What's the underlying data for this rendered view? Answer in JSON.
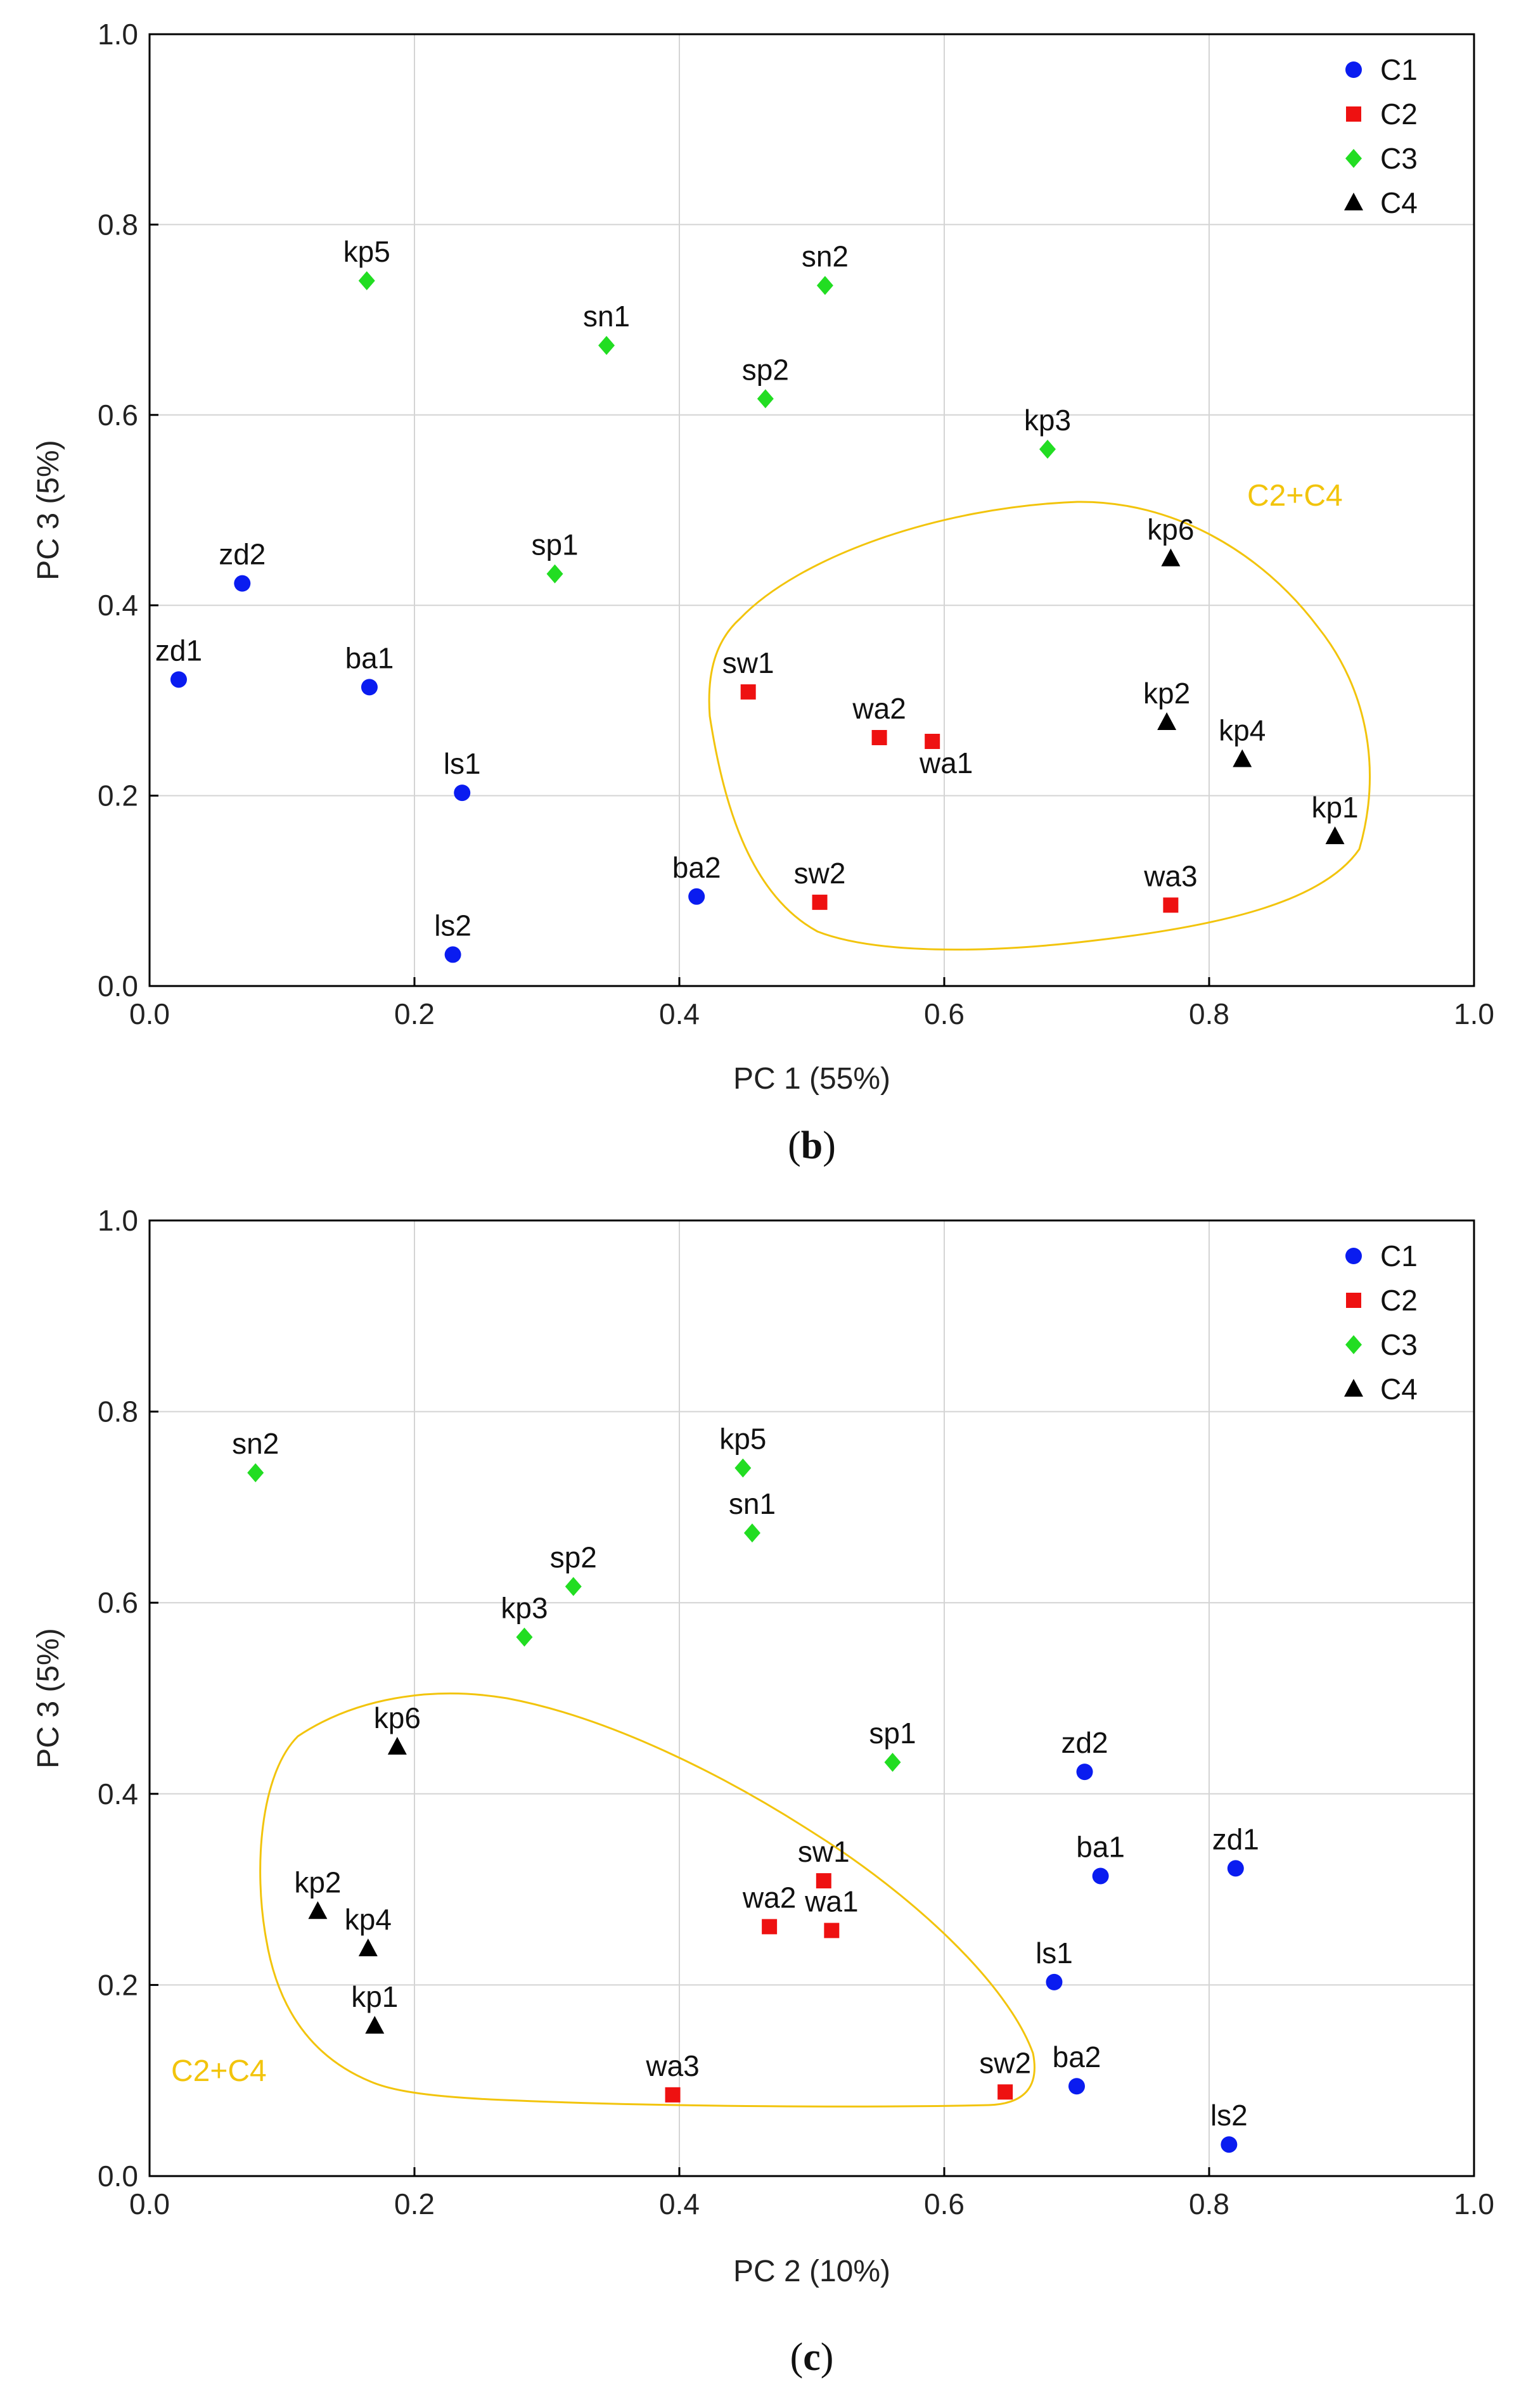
{
  "chart_data": [
    {
      "type": "scatter",
      "panel": "b",
      "xlabel": "PC 1 (55%)",
      "ylabel": "PC 3 (5%)",
      "xlim": [
        0,
        1
      ],
      "ylim": [
        0,
        1
      ],
      "xticks": [
        "0.0",
        "0.2",
        "0.4",
        "0.6",
        "0.8",
        "1.0"
      ],
      "yticks": [
        "0.0",
        "0.2",
        "0.4",
        "0.6",
        "0.8",
        "1.0"
      ],
      "grid": true,
      "legend_position": "top-right",
      "group_label": "C2+C4",
      "series": [
        {
          "name": "C1",
          "marker": "circle",
          "color": "#0a1cf0",
          "points": [
            {
              "label": "zd2",
              "x": 0.07,
              "y": 0.423
            },
            {
              "label": "zd1",
              "x": 0.022,
              "y": 0.322
            },
            {
              "label": "ba1",
              "x": 0.166,
              "y": 0.314
            },
            {
              "label": "ls1",
              "x": 0.236,
              "y": 0.203
            },
            {
              "label": "ls2",
              "x": 0.229,
              "y": 0.033
            },
            {
              "label": "ba2",
              "x": 0.413,
              "y": 0.094
            }
          ]
        },
        {
          "name": "C2",
          "marker": "square",
          "color": "#ee1111",
          "points": [
            {
              "label": "sw1",
              "x": 0.452,
              "y": 0.309
            },
            {
              "label": "wa2",
              "x": 0.551,
              "y": 0.261
            },
            {
              "label": "wa1",
              "x": 0.591,
              "y": 0.257
            },
            {
              "label": "sw2",
              "x": 0.506,
              "y": 0.088
            },
            {
              "label": "wa3",
              "x": 0.771,
              "y": 0.085
            }
          ]
        },
        {
          "name": "C3",
          "marker": "diamond",
          "color": "#22dd22",
          "points": [
            {
              "label": "kp5",
              "x": 0.164,
              "y": 0.741
            },
            {
              "label": "sn2",
              "x": 0.51,
              "y": 0.736
            },
            {
              "label": "sn1",
              "x": 0.345,
              "y": 0.673
            },
            {
              "label": "sp2",
              "x": 0.465,
              "y": 0.617
            },
            {
              "label": "kp3",
              "x": 0.678,
              "y": 0.564
            },
            {
              "label": "sp1",
              "x": 0.306,
              "y": 0.433
            }
          ]
        },
        {
          "name": "C4",
          "marker": "triangle",
          "color": "#000000",
          "points": [
            {
              "label": "kp6",
              "x": 0.771,
              "y": 0.449
            },
            {
              "label": "kp2",
              "x": 0.768,
              "y": 0.277
            },
            {
              "label": "kp4",
              "x": 0.825,
              "y": 0.238
            },
            {
              "label": "kp1",
              "x": 0.895,
              "y": 0.157
            }
          ]
        }
      ]
    },
    {
      "type": "scatter",
      "panel": "c",
      "xlabel": "PC 2 (10%)",
      "ylabel": "PC 3 (5%)",
      "xlim": [
        0,
        1
      ],
      "ylim": [
        0,
        1
      ],
      "xticks": [
        "0.0",
        "0.2",
        "0.4",
        "0.6",
        "0.8",
        "1.0"
      ],
      "yticks": [
        "0.0",
        "0.2",
        "0.4",
        "0.6",
        "0.8",
        "1.0"
      ],
      "grid": true,
      "legend_position": "top-right",
      "group_label": "C2+C4",
      "series": [
        {
          "name": "C1",
          "marker": "circle",
          "color": "#0a1cf0",
          "points": [
            {
              "label": "zd2",
              "x": 0.706,
              "y": 0.423
            },
            {
              "label": "ba1",
              "x": 0.718,
              "y": 0.314
            },
            {
              "label": "zd1",
              "x": 0.82,
              "y": 0.322
            },
            {
              "label": "ls1",
              "x": 0.683,
              "y": 0.203
            },
            {
              "label": "ba2",
              "x": 0.7,
              "y": 0.094
            },
            {
              "label": "ls2",
              "x": 0.815,
              "y": 0.033
            }
          ]
        },
        {
          "name": "C2",
          "marker": "square",
          "color": "#ee1111",
          "points": [
            {
              "label": "sw1",
              "x": 0.509,
              "y": 0.309
            },
            {
              "label": "wa2",
              "x": 0.468,
              "y": 0.261
            },
            {
              "label": "wa1",
              "x": 0.515,
              "y": 0.257
            },
            {
              "label": "wa3",
              "x": 0.395,
              "y": 0.085
            },
            {
              "label": "sw2",
              "x": 0.646,
              "y": 0.088
            }
          ]
        },
        {
          "name": "C3",
          "marker": "diamond",
          "color": "#22dd22",
          "points": [
            {
              "label": "sn2",
              "x": 0.08,
              "y": 0.736
            },
            {
              "label": "kp5",
              "x": 0.448,
              "y": 0.741
            },
            {
              "label": "sn1",
              "x": 0.455,
              "y": 0.673
            },
            {
              "label": "sp2",
              "x": 0.32,
              "y": 0.617
            },
            {
              "label": "kp3",
              "x": 0.283,
              "y": 0.564
            },
            {
              "label": "sp1",
              "x": 0.561,
              "y": 0.433
            }
          ]
        },
        {
          "name": "C4",
          "marker": "triangle",
          "color": "#000000",
          "points": [
            {
              "label": "kp6",
              "x": 0.187,
              "y": 0.449
            },
            {
              "label": "kp2",
              "x": 0.127,
              "y": 0.277
            },
            {
              "label": "kp4",
              "x": 0.165,
              "y": 0.238
            },
            {
              "label": "kp1",
              "x": 0.17,
              "y": 0.157
            }
          ]
        }
      ]
    }
  ],
  "captions": [
    {
      "open": "(",
      "letter": "b",
      "close": ")"
    },
    {
      "open": "(",
      "letter": "c",
      "close": ")"
    }
  ],
  "colors": {
    "group_outline": "#f2c40c",
    "grid": "#d4d4d4",
    "frame": "#000000"
  }
}
